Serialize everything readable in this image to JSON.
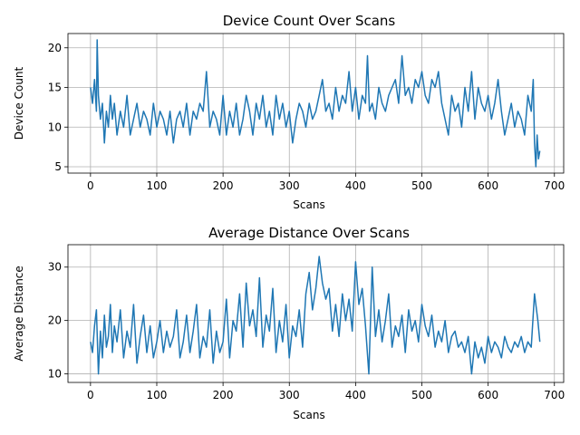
{
  "chart_data": [
    {
      "type": "line",
      "title": "Device Count Over Scans",
      "xlabel": "Scans",
      "ylabel": "Device Count",
      "xlim": [
        -34,
        714
      ],
      "ylim": [
        4.2,
        21.8
      ],
      "xticks": [
        0,
        100,
        200,
        300,
        400,
        500,
        600,
        700
      ],
      "yticks": [
        5,
        10,
        15,
        20
      ],
      "grid": true,
      "series": [
        {
          "color": "#1f77b4",
          "x": [
            0,
            3,
            6,
            9,
            10,
            12,
            15,
            18,
            21,
            24,
            27,
            30,
            33,
            36,
            40,
            45,
            50,
            55,
            60,
            65,
            70,
            75,
            80,
            85,
            90,
            95,
            100,
            105,
            110,
            115,
            120,
            125,
            130,
            135,
            140,
            145,
            150,
            155,
            160,
            165,
            170,
            175,
            180,
            185,
            190,
            195,
            200,
            205,
            210,
            215,
            220,
            225,
            230,
            235,
            240,
            245,
            250,
            255,
            260,
            265,
            270,
            275,
            280,
            285,
            290,
            295,
            300,
            305,
            310,
            315,
            320,
            325,
            330,
            335,
            340,
            345,
            350,
            355,
            360,
            365,
            370,
            375,
            380,
            385,
            390,
            395,
            400,
            405,
            410,
            415,
            418,
            421,
            425,
            430,
            435,
            440,
            445,
            450,
            455,
            460,
            465,
            470,
            475,
            480,
            485,
            490,
            495,
            500,
            505,
            510,
            515,
            520,
            525,
            530,
            535,
            540,
            545,
            550,
            555,
            560,
            565,
            570,
            575,
            580,
            585,
            590,
            595,
            600,
            605,
            610,
            615,
            620,
            625,
            630,
            635,
            640,
            645,
            650,
            655,
            660,
            665,
            668,
            670,
            672,
            674,
            676,
            678
          ],
          "values": [
            15,
            13,
            16,
            12,
            21,
            14,
            11,
            13,
            8,
            12,
            10,
            14,
            11,
            13,
            9,
            12,
            10,
            14,
            9,
            11,
            13,
            10,
            12,
            11,
            9,
            13,
            10,
            12,
            11,
            9,
            12,
            8,
            11,
            12,
            10,
            13,
            9,
            12,
            11,
            13,
            12,
            17,
            10,
            12,
            11,
            9,
            14,
            9,
            12,
            10,
            13,
            9,
            11,
            14,
            12,
            9,
            13,
            11,
            14,
            10,
            12,
            9,
            14,
            11,
            13,
            10,
            12,
            8,
            11,
            13,
            12,
            10,
            13,
            11,
            12,
            14,
            16,
            12,
            13,
            11,
            15,
            12,
            14,
            13,
            17,
            12,
            15,
            11,
            14,
            13,
            19,
            12,
            13,
            11,
            15,
            13,
            12,
            14,
            15,
            16,
            13,
            19,
            14,
            15,
            13,
            16,
            15,
            17,
            14,
            13,
            16,
            15,
            17,
            13,
            11,
            9,
            14,
            12,
            13,
            10,
            15,
            12,
            17,
            11,
            15,
            13,
            12,
            14,
            11,
            13,
            16,
            12,
            9,
            11,
            13,
            10,
            12,
            11,
            9,
            14,
            12,
            16,
            8,
            5,
            9,
            6,
            7
          ]
        }
      ]
    },
    {
      "type": "line",
      "title": "Average Distance Over Scans",
      "xlabel": "Scans",
      "ylabel": "Average Distance",
      "xlim": [
        -34,
        714
      ],
      "ylim": [
        8.4,
        34.2
      ],
      "xticks": [
        0,
        100,
        200,
        300,
        400,
        500,
        600,
        700
      ],
      "yticks": [
        10,
        20,
        30
      ],
      "grid": true,
      "series": [
        {
          "color": "#1f77b4",
          "x": [
            0,
            3,
            6,
            9,
            12,
            15,
            18,
            21,
            24,
            27,
            30,
            33,
            36,
            40,
            45,
            50,
            55,
            60,
            65,
            70,
            75,
            80,
            85,
            90,
            95,
            100,
            105,
            110,
            115,
            120,
            125,
            130,
            135,
            140,
            145,
            150,
            155,
            160,
            165,
            170,
            175,
            180,
            185,
            190,
            195,
            200,
            205,
            210,
            215,
            220,
            225,
            230,
            235,
            240,
            245,
            250,
            255,
            260,
            265,
            270,
            275,
            280,
            285,
            290,
            295,
            300,
            305,
            310,
            315,
            320,
            325,
            330,
            335,
            340,
            345,
            350,
            355,
            360,
            365,
            370,
            375,
            380,
            385,
            390,
            395,
            400,
            405,
            410,
            415,
            420,
            425,
            430,
            435,
            440,
            445,
            450,
            455,
            460,
            465,
            470,
            475,
            480,
            485,
            490,
            495,
            500,
            505,
            510,
            515,
            520,
            525,
            530,
            535,
            540,
            545,
            550,
            555,
            560,
            565,
            570,
            575,
            580,
            585,
            590,
            595,
            600,
            605,
            610,
            615,
            620,
            625,
            630,
            635,
            640,
            645,
            650,
            655,
            660,
            665,
            670,
            675,
            678
          ],
          "values": [
            16,
            14,
            19,
            22,
            10,
            18,
            13,
            21,
            15,
            17,
            23,
            14,
            19,
            16,
            22,
            13,
            18,
            15,
            23,
            12,
            17,
            21,
            14,
            19,
            13,
            16,
            20,
            14,
            18,
            15,
            17,
            22,
            13,
            16,
            21,
            14,
            18,
            23,
            13,
            17,
            15,
            22,
            12,
            18,
            14,
            16,
            24,
            13,
            20,
            18,
            25,
            15,
            27,
            19,
            22,
            17,
            28,
            15,
            21,
            18,
            26,
            14,
            20,
            16,
            23,
            13,
            19,
            17,
            22,
            15,
            25,
            29,
            22,
            26,
            32,
            27,
            24,
            26,
            18,
            23,
            17,
            25,
            20,
            24,
            18,
            31,
            23,
            26,
            19,
            10,
            30,
            17,
            22,
            16,
            20,
            25,
            15,
            19,
            17,
            21,
            14,
            22,
            18,
            20,
            16,
            23,
            19,
            17,
            21,
            15,
            18,
            16,
            20,
            14,
            17,
            18,
            15,
            16,
            14,
            17,
            10,
            16,
            13,
            15,
            12,
            17,
            14,
            16,
            15,
            13,
            17,
            15,
            14,
            16,
            15,
            17,
            14,
            16,
            15,
            25,
            20,
            16
          ]
        }
      ]
    }
  ]
}
